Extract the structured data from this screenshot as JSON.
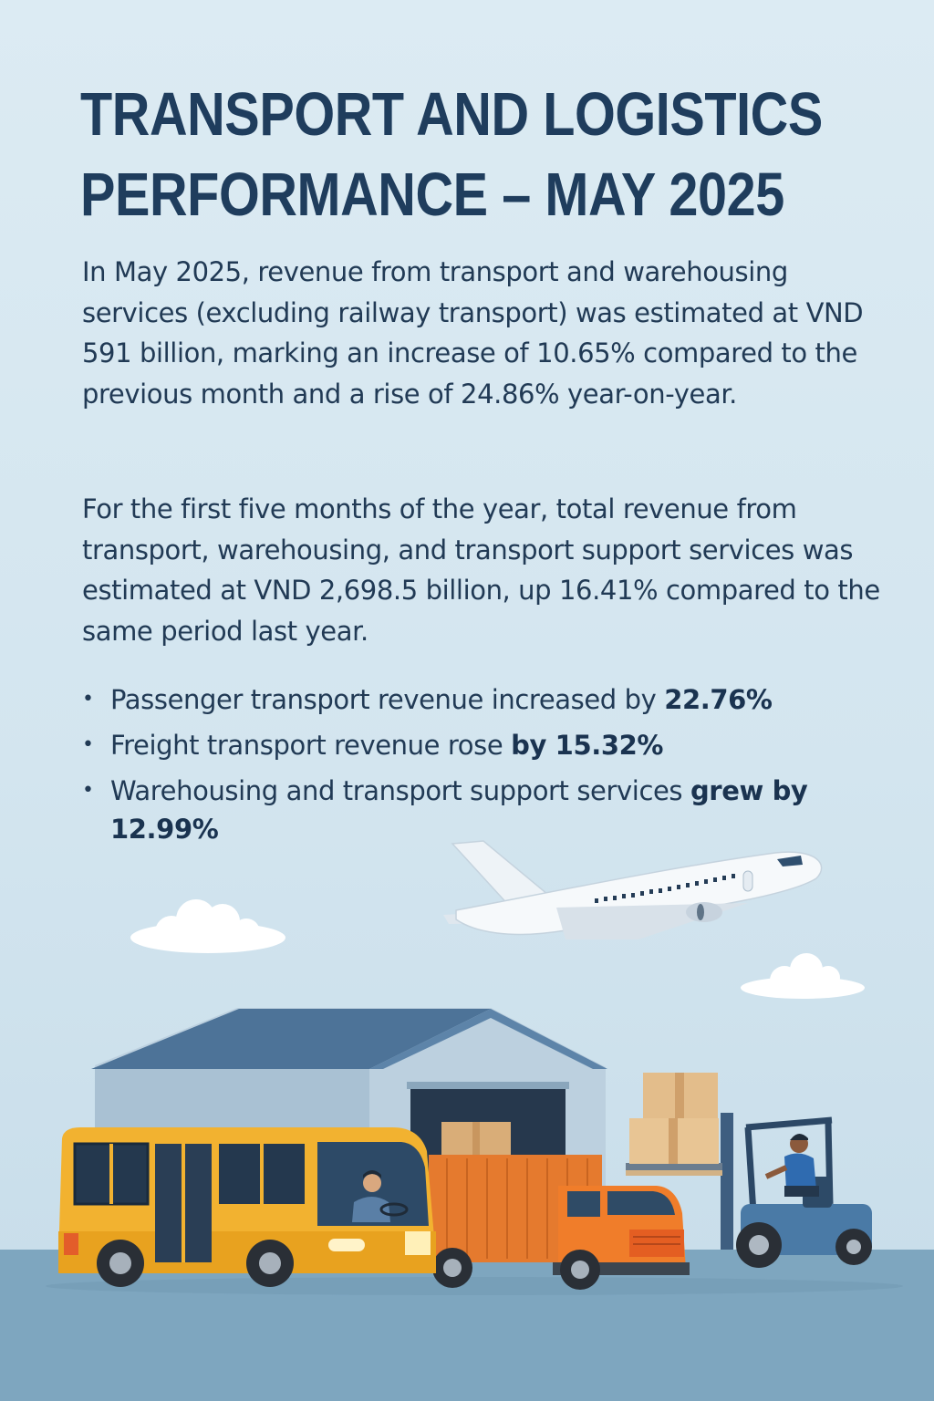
{
  "title": {
    "line1": "TRANSPORT AND LOGISTICS",
    "line2": "PERFORMANCE – MAY 2025"
  },
  "paragraph1": "In May 2025, revenue from transport and warehousing services (excluding railway transport) was estimated at VND 591 billion, marking an increase of 10.65% compared to the previous month and a rise of 24.86% year-on-year.",
  "paragraph2": "For the first five months of the year, total revenue from transport, warehousing, and transport support services was estimated at VND 2,698.5 billion, up 16.41% compared to the same period last year.",
  "bullets": [
    {
      "text": "Passenger transport revenue increased by ",
      "highlight": "22.76%"
    },
    {
      "text": "Freight transport revenue rose ",
      "highlight": "by 15.32%"
    },
    {
      "text": "Warehousing and transport support services ",
      "highlight": "grew by 12.99%"
    }
  ],
  "bullet_symbol": "•",
  "illustration": {
    "elements": [
      "airplane",
      "clouds",
      "warehouse",
      "bus",
      "delivery-truck",
      "forklift",
      "cardboard-boxes",
      "bus-driver",
      "forklift-operator"
    ],
    "colors": {
      "bus": "#f2b230",
      "truck": "#ee7d2b",
      "forklift": "#4a7aa6",
      "warehouse_roof": "#4d7398",
      "ground": "#7ea6bf"
    }
  }
}
